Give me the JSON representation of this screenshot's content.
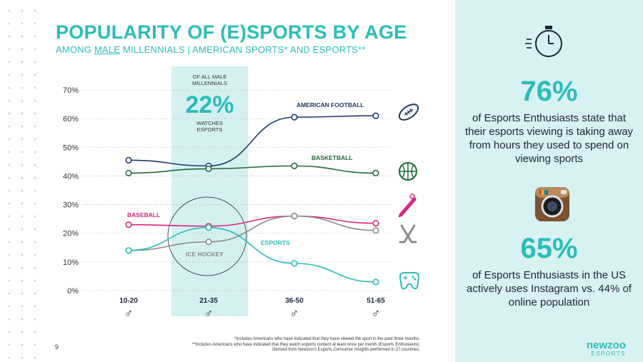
{
  "title": "POPULARITY OF (E)SPORTS BY AGE",
  "subtitle": {
    "prefix": "AMONG ",
    "underlined": "MALE",
    "suffix": " MILLENNIALS | AMERICAN SPORTS* AND ESPORTS**"
  },
  "highlight": {
    "header": [
      "OF ALL MALE",
      "MILLENNIALS"
    ],
    "value": "22%",
    "caption": [
      "WATCHES",
      "ESPORTS"
    ],
    "color": "#d5f0f1"
  },
  "chart_data": {
    "type": "line",
    "categories": [
      "10-20",
      "21-35",
      "36-50",
      "51-65"
    ],
    "category_symbol": "♂",
    "ylim": [
      0,
      70
    ],
    "yticks": [
      "0%",
      "10%",
      "20%",
      "30%",
      "40%",
      "50%",
      "60%",
      "70%"
    ],
    "grid": true,
    "series": [
      {
        "name": "AMERICAN FOOTBALL",
        "values": [
          45.5,
          43.5,
          60.5,
          61
        ],
        "color": "#1f3a68",
        "icon": "football-icon"
      },
      {
        "name": "BASKETBALL",
        "values": [
          41,
          42.5,
          43.5,
          41
        ],
        "color": "#1f6b3a",
        "icon": "basketball-icon"
      },
      {
        "name": "BASEBALL",
        "values": [
          23,
          22.5,
          26,
          23.5
        ],
        "color": "#d6277e",
        "icon": "baseball-bat-icon"
      },
      {
        "name": "ICE HOCKEY",
        "values": [
          14,
          17,
          26,
          21
        ],
        "color": "#8a8a8a",
        "icon": "hockey-sticks-icon"
      },
      {
        "name": "ESPORTS",
        "values": [
          14,
          22,
          9.5,
          3
        ],
        "color": "#2bbdb8",
        "icon": "game-controller-icon"
      }
    ]
  },
  "stats": [
    {
      "value": "76%",
      "text": "of Esports Enthusiasts state that their esports viewing is taking away from hours they used to spend on viewing sports",
      "icon": "stopwatch-icon"
    },
    {
      "value": "65%",
      "text": "of Esports Enthusiasts in the US actively uses Instagram vs. 44% of online population",
      "icon": "instagram-icon"
    }
  ],
  "footnotes": [
    "*Includes Americans who have indicated that they have viewed the sport in the past three months.",
    "**Includes Americans who have indicated that they watch esports content at least once per month (Esports Enthusiasts).",
    "Derived from Newzoo's Esports Consumer Insights performed in 27 countries."
  ],
  "page_number": "9",
  "logo": {
    "line1": "newzoo",
    "line2": "ESPORTS"
  }
}
